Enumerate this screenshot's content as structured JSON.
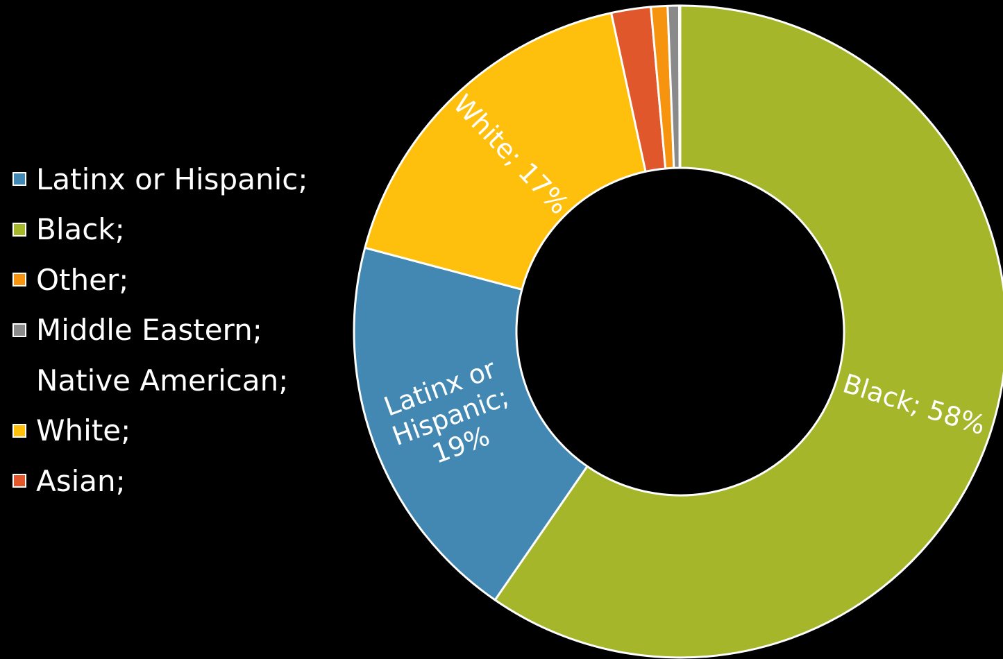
{
  "chart_data": {
    "type": "pie",
    "donut": true,
    "start_angle_deg": 0,
    "direction": "clockwise",
    "slices": [
      {
        "label": "Black",
        "value": 58,
        "color": "#A5B62B",
        "data_label": [
          "Black; 58%"
        ]
      },
      {
        "label": "Latinx or Hispanic",
        "value": 19,
        "color": "#4388B2",
        "data_label": [
          "Latinx or",
          "Hispanic;",
          "19%"
        ]
      },
      {
        "label": "White",
        "value": 17,
        "color": "#FFC00D",
        "data_label": [
          "White; 17%"
        ]
      },
      {
        "label": "Asian",
        "value": 1.9,
        "color": "#E0572C",
        "data_label": []
      },
      {
        "label": "Other",
        "value": 0.8,
        "color": "#F7940F",
        "data_label": []
      },
      {
        "label": "Middle Eastern",
        "value": 0.55,
        "color": "#8A8A8A",
        "data_label": []
      },
      {
        "label": "Native American",
        "value": 0.05,
        "color": "#222222",
        "data_label": []
      }
    ],
    "legend": {
      "placement": "left",
      "items": [
        {
          "text": "Latinx or Hispanic;",
          "color": "#4388B2"
        },
        {
          "text": "Black;",
          "color": "#A5B62B"
        },
        {
          "text": "Other;",
          "color": "#F7940F"
        },
        {
          "text": "Middle Eastern;",
          "color": "#8A8A8A"
        },
        {
          "text": "Native American;",
          "color": null
        },
        {
          "text": "White;",
          "color": "#FFC00D"
        },
        {
          "text": "Asian;",
          "color": "#E0572C"
        }
      ]
    }
  },
  "colors": {
    "background": "#000000",
    "slice_border": "#ffffff",
    "text": "#ffffff"
  }
}
